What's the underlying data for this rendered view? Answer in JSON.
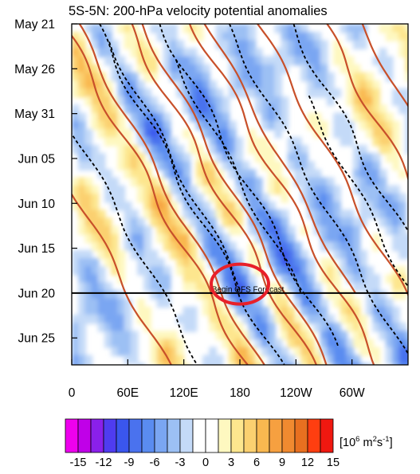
{
  "chart_data": {
    "type": "heatmap",
    "title": "5S-5N: 200-hPa velocity potential anomalies",
    "xlabel": "",
    "ylabel": "",
    "x_tick_labels": [
      "0",
      "60E",
      "120E",
      "180",
      "120W",
      "60W"
    ],
    "x_ticks_deg": [
      0,
      60,
      120,
      180,
      240,
      300
    ],
    "xlim": [
      0,
      360
    ],
    "y_tick_labels": [
      "May 21",
      "May 26",
      "May 31",
      "Jun 05",
      "Jun 10",
      "Jun 15",
      "Jun 20",
      "Jun 25"
    ],
    "y_ticks": [
      "2014-05-21",
      "2014-05-26",
      "2014-05-31",
      "2014-06-05",
      "2014-06-10",
      "2014-06-15",
      "2014-06-20",
      "2014-06-25"
    ],
    "ylim": [
      "2014-05-21",
      "2014-06-28"
    ],
    "forecast_line": {
      "date": "2014-06-20",
      "label": "Begin GFS Forecast"
    },
    "highlight": {
      "type": "ellipse",
      "color": "#e8202a",
      "center_lon": 180,
      "center_date": "2014-06-19"
    },
    "colorbar": {
      "unit": "[10^6 m^2 s^-1]",
      "unit_parts": {
        "open": "[10",
        "e1": "6",
        "mid": " m",
        "e2": "2",
        "s": "s",
        "e3": "-1",
        "close": "]"
      },
      "tick_labels": [
        "-15",
        "-12",
        "-9",
        "-6",
        "-3",
        "0",
        "3",
        "6",
        "9",
        "12",
        "15"
      ],
      "levels": [
        -15,
        -13.5,
        -12,
        -10.5,
        -9,
        -7.5,
        -6,
        -4.5,
        -3,
        -1.5,
        0,
        1.5,
        3,
        4.5,
        6,
        7.5,
        9,
        10.5,
        12,
        13.5,
        15
      ],
      "colors": [
        "#ee00ee",
        "#c000e8",
        "#8a20ea",
        "#4f3cf0",
        "#3a56ee",
        "#4a72ee",
        "#5a8cf0",
        "#7aa6f2",
        "#9cc0f4",
        "#c4daf8",
        "#ffffff",
        "#ffffff",
        "#fef8c0",
        "#fde68e",
        "#fbd070",
        "#f9b850",
        "#f6a040",
        "#f08a30",
        "#e87020",
        "#ff3e10",
        "#f01810"
      ]
    },
    "contours": [
      {
        "style": "solid",
        "color": "#c8502a",
        "meaning": "positive"
      },
      {
        "style": "dashed",
        "color": "#000000",
        "meaning": "negative"
      }
    ]
  }
}
